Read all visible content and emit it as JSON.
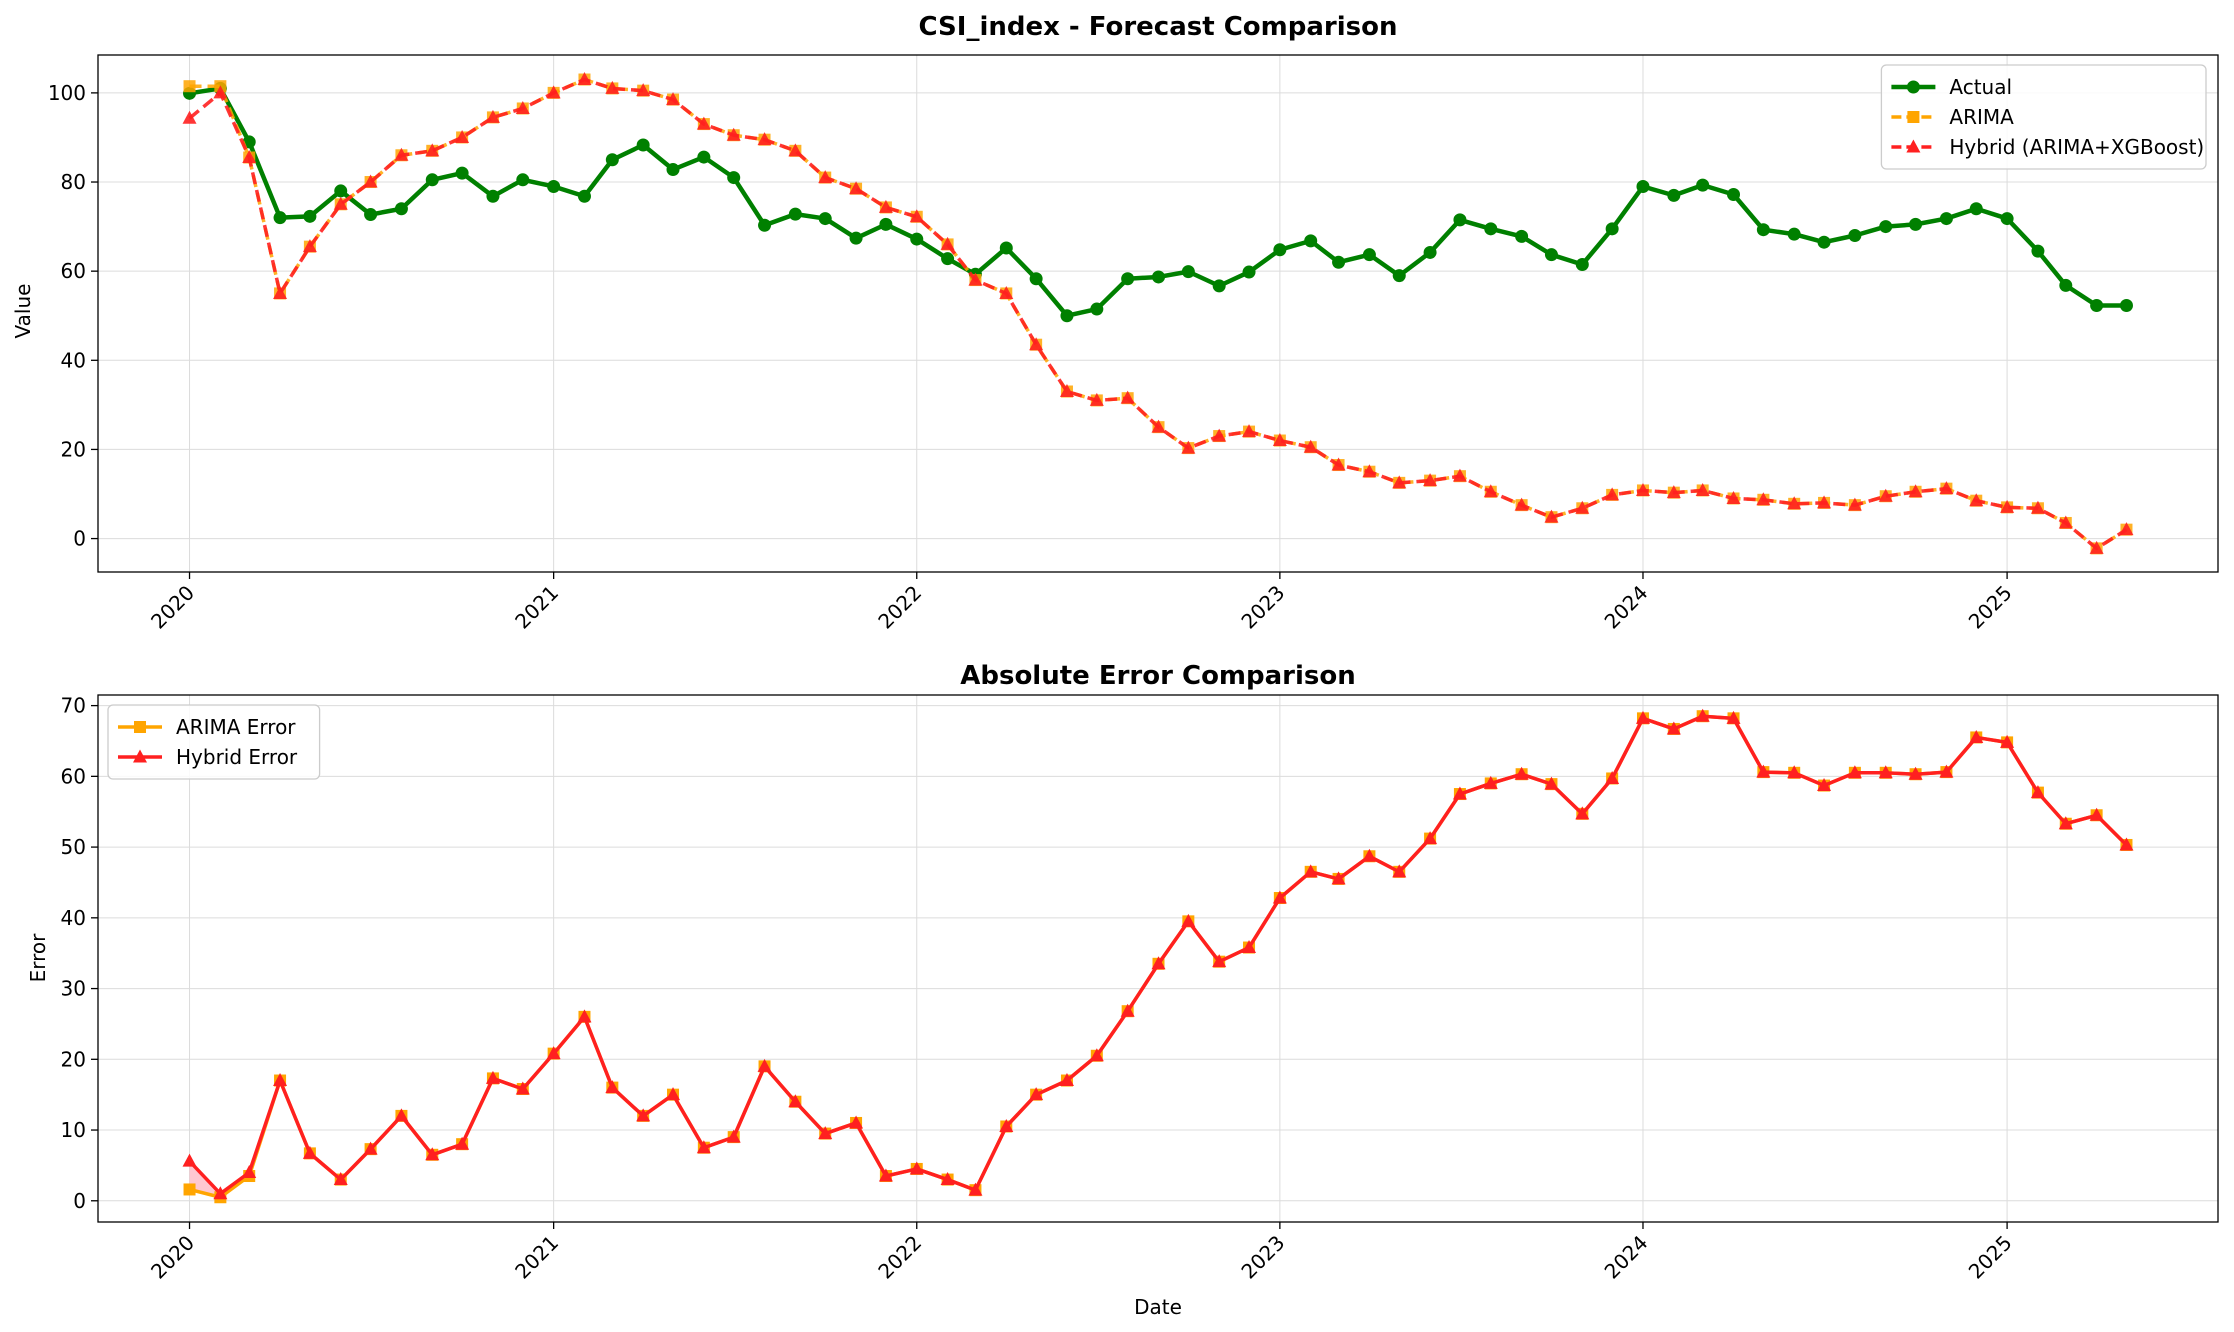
{
  "figure": {
    "background": "#ffffff"
  },
  "chart_data": [
    {
      "type": "line",
      "title": "CSI_index - Forecast Comparison",
      "xlabel": "",
      "ylabel": "Value",
      "x_axis": "date",
      "xlim": [
        "2019-10-01",
        "2025-08-01"
      ],
      "ylim": [
        -7.5,
        108.5
      ],
      "x_ticks": [
        "2020",
        "2021",
        "2022",
        "2023",
        "2024",
        "2025"
      ],
      "y_ticks": [
        0,
        20,
        40,
        60,
        80,
        100
      ],
      "grid": true,
      "legend_position": "top-right",
      "start_date": "2020-01-01",
      "x": [
        "2020-01",
        "2020-02",
        "2020-03",
        "2020-04",
        "2020-05",
        "2020-06",
        "2020-07",
        "2020-08",
        "2020-09",
        "2020-10",
        "2020-11",
        "2020-12",
        "2021-01",
        "2021-02",
        "2021-03",
        "2021-04",
        "2021-05",
        "2021-06",
        "2021-07",
        "2021-08",
        "2021-09",
        "2021-10",
        "2021-11",
        "2021-12",
        "2022-01",
        "2022-02",
        "2022-03",
        "2022-04",
        "2022-05",
        "2022-06",
        "2022-07",
        "2022-08",
        "2022-09",
        "2022-10",
        "2022-11",
        "2022-12",
        "2023-01",
        "2023-02",
        "2023-03",
        "2023-04",
        "2023-05",
        "2023-06",
        "2023-07",
        "2023-08",
        "2023-09",
        "2023-10",
        "2023-11",
        "2023-12",
        "2024-01",
        "2024-02",
        "2024-03",
        "2024-04",
        "2024-05",
        "2024-06",
        "2024-07",
        "2024-08",
        "2024-09",
        "2024-10",
        "2024-11",
        "2024-12",
        "2025-01",
        "2025-02",
        "2025-03",
        "2025-04",
        "2025-05"
      ],
      "series": [
        {
          "name": "Actual",
          "color": "#008000",
          "style": "solid",
          "marker": "circle",
          "values": [
            99.9,
            101,
            89,
            72,
            72.3,
            78,
            72.7,
            74,
            80.5,
            82,
            76.8,
            80.5,
            79,
            76.8,
            85,
            88.3,
            82.8,
            85.6,
            81,
            70.3,
            72.8,
            71.8,
            67.4,
            70.5,
            67.2,
            62.8,
            59.3,
            65.2,
            58.3,
            50,
            51.5,
            58.3,
            58.7,
            59.9,
            56.7,
            59.8,
            64.8,
            66.8,
            62,
            63.7,
            59,
            64.2,
            71.5,
            69.5,
            67.8,
            63.7,
            61.5,
            69.5,
            79,
            77,
            79.3,
            77.2,
            69.3,
            68.3,
            66.5,
            68,
            70,
            70.5,
            71.8,
            74,
            71.8,
            64.5,
            56.8,
            52.3,
            52.3
          ]
        },
        {
          "name": "ARIMA",
          "color": "#FFA500",
          "style": "dashed",
          "marker": "square",
          "values": [
            101.5,
            101.5,
            85.5,
            55,
            65.5,
            75,
            80,
            86,
            87,
            90,
            94.5,
            96.5,
            100,
            103,
            101,
            100.5,
            98.5,
            93,
            90.5,
            89.5,
            87,
            81,
            78.5,
            74.3,
            72.2,
            66,
            58,
            55,
            43.5,
            33,
            31,
            31.5,
            25,
            20.3,
            23,
            24,
            22,
            20.5,
            16.5,
            15,
            12.5,
            13,
            14,
            10.5,
            7.5,
            4.8,
            6.8,
            9.8,
            10.8,
            10.3,
            10.8,
            9,
            8.7,
            7.8,
            8,
            7.5,
            9.5,
            10.5,
            11.2,
            8.5,
            7,
            6.8,
            3.5,
            -2.2,
            2
          ]
        },
        {
          "name": "Hybrid (ARIMA+XGBoost)",
          "color": "#FF2020",
          "style": "dashed",
          "marker": "triangle",
          "values": [
            94.3,
            100,
            85.5,
            55,
            65.5,
            75,
            80,
            86,
            87,
            90,
            94.5,
            96.5,
            100,
            103,
            101,
            100.5,
            98.5,
            93,
            90.5,
            89.5,
            87,
            81,
            78.5,
            74.3,
            72.2,
            66,
            58,
            55,
            43.5,
            33,
            31,
            31.5,
            25,
            20.3,
            23,
            24,
            22,
            20.5,
            16.5,
            15,
            12.5,
            13,
            14,
            10.5,
            7.5,
            4.8,
            6.8,
            9.8,
            10.8,
            10.3,
            10.8,
            9,
            8.7,
            7.8,
            8,
            7.5,
            9.5,
            10.5,
            11.2,
            8.5,
            7,
            6.8,
            3.5,
            -2.2,
            2
          ]
        }
      ]
    },
    {
      "type": "line",
      "title": "Absolute Error Comparison",
      "xlabel": "Date",
      "ylabel": "Error",
      "x_axis": "date",
      "xlim": [
        "2019-10-01",
        "2025-08-01"
      ],
      "ylim": [
        -3,
        71.5
      ],
      "x_ticks": [
        "2020",
        "2021",
        "2022",
        "2023",
        "2024",
        "2025"
      ],
      "y_ticks": [
        0,
        10,
        20,
        30,
        40,
        50,
        60,
        70
      ],
      "grid": true,
      "legend_position": "top-left",
      "fill_between_color": "#FFB6C1",
      "start_date": "2020-01-01",
      "series": [
        {
          "name": "ARIMA Error",
          "color": "#FFA500",
          "style": "solid",
          "marker": "square",
          "values": [
            1.6,
            0.5,
            3.5,
            17,
            6.7,
            3,
            7.3,
            12,
            6.5,
            8,
            17.3,
            15.8,
            20.8,
            26,
            16,
            12,
            15,
            7.5,
            9,
            19,
            14,
            9.5,
            11,
            3.5,
            4.5,
            3,
            1.5,
            10.5,
            15,
            17,
            20.5,
            26.8,
            33.5,
            39.5,
            33.8,
            35.8,
            42.8,
            46.5,
            45.5,
            48.7,
            46.5,
            51.2,
            57.5,
            59,
            60.3,
            58.9,
            54.7,
            59.7,
            68.2,
            66.7,
            68.5,
            68.2,
            60.6,
            60.5,
            58.7,
            60.5,
            60.5,
            60.3,
            60.6,
            65.5,
            64.8,
            57.7,
            53.3,
            54.5,
            50.3
          ]
        },
        {
          "name": "Hybrid Error",
          "color": "#FF2020",
          "style": "solid",
          "marker": "triangle",
          "values": [
            5.6,
            1,
            4,
            17,
            6.7,
            3,
            7.3,
            12,
            6.5,
            8,
            17.3,
            15.8,
            20.8,
            26,
            16,
            12,
            15,
            7.5,
            9,
            19,
            14,
            9.5,
            11,
            3.5,
            4.5,
            3,
            1.5,
            10.5,
            15,
            17,
            20.5,
            26.8,
            33.5,
            39.5,
            33.8,
            35.8,
            42.8,
            46.5,
            45.5,
            48.7,
            46.5,
            51.2,
            57.5,
            59,
            60.3,
            58.9,
            54.7,
            59.7,
            68.2,
            66.7,
            68.5,
            68.2,
            60.6,
            60.5,
            58.7,
            60.5,
            60.5,
            60.3,
            60.6,
            65.5,
            64.8,
            57.7,
            53.3,
            54.5,
            50.3
          ]
        }
      ]
    }
  ]
}
